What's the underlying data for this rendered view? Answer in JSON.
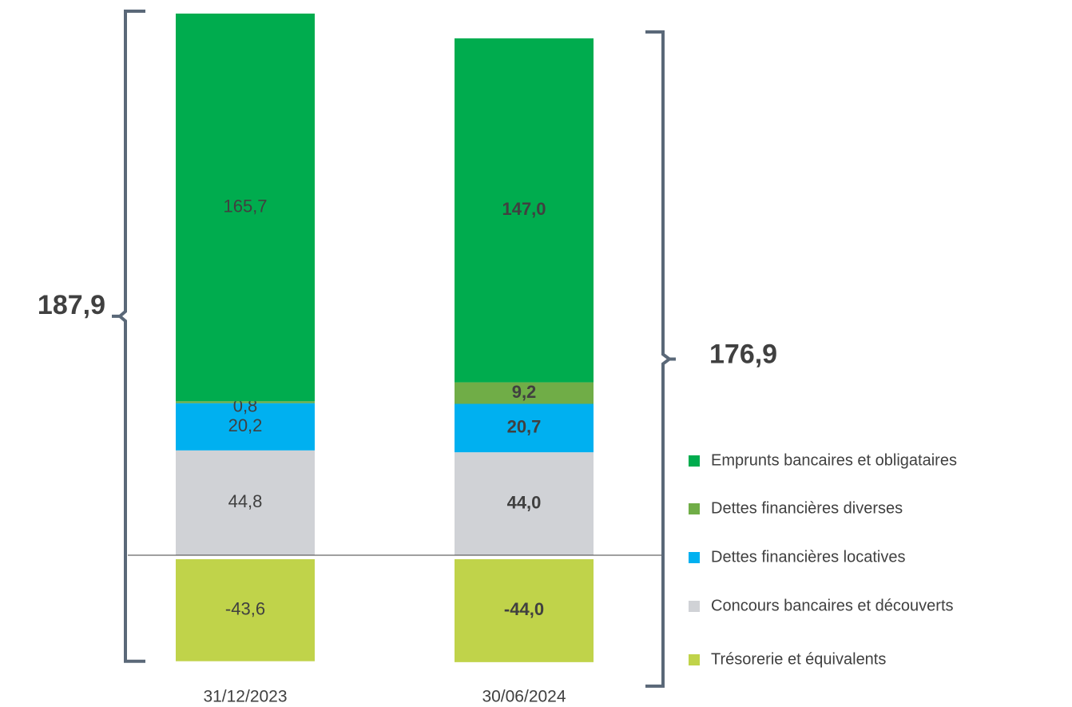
{
  "chart_data": {
    "type": "stacked_bar",
    "categories": [
      "31/12/2023",
      "30/06/2024"
    ],
    "series": [
      {
        "name": "Trésorerie et équivalents",
        "color": "#c0d34a",
        "values": [
          -43.6,
          -44.0
        ],
        "value_labels": [
          "-43,6",
          "-44,0"
        ]
      },
      {
        "name": "Concours bancaires et découverts",
        "color": "#d0d2d6",
        "values": [
          44.8,
          44.0
        ],
        "value_labels": [
          "44,8",
          "44,0"
        ]
      },
      {
        "name": "Dettes financières locatives",
        "color": "#00b0f0",
        "values": [
          20.2,
          20.7
        ],
        "value_labels": [
          "20,2",
          "20,7"
        ]
      },
      {
        "name": "Dettes financières diverses",
        "color": "#70ad47",
        "values": [
          0.8,
          9.2
        ],
        "value_labels": [
          "0,8",
          "9,2"
        ]
      },
      {
        "name": "Emprunts bancaires et obligataires",
        "color": "#00ac4e",
        "values": [
          165.7,
          147.0
        ],
        "value_labels": [
          "165,7",
          "147,0"
        ]
      }
    ],
    "totals": [
      187.9,
      176.9
    ],
    "total_labels": [
      "187,9",
      "176,9"
    ]
  }
}
